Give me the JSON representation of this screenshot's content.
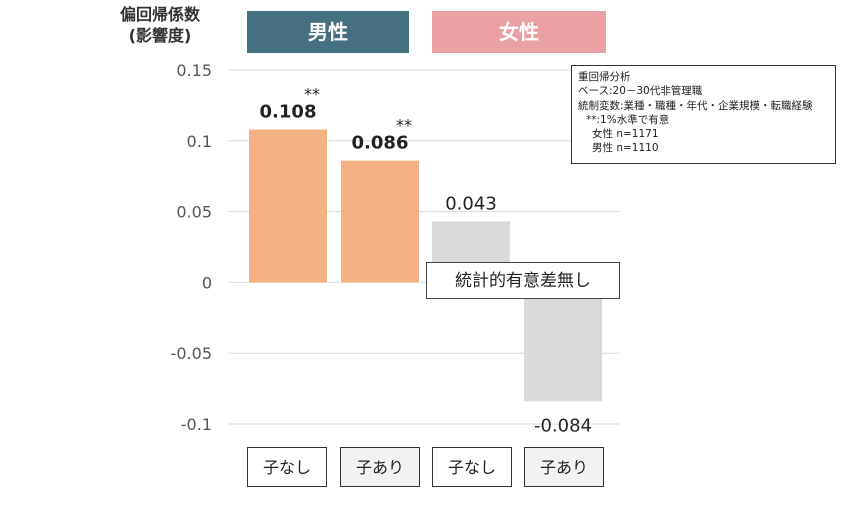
{
  "chart_data": {
    "type": "bar",
    "ylabel_line1": "偏回帰係数",
    "ylabel_line2": "(影響度)",
    "ylim": [
      -0.1,
      0.15
    ],
    "yticks": [
      "0.15",
      "0.1",
      "0.05",
      "0",
      "-0.05",
      "-0.1"
    ],
    "ytick_values": [
      0.15,
      0.1,
      0.05,
      0,
      -0.05,
      -0.1
    ],
    "grid": true,
    "groups": [
      {
        "name": "男性",
        "color": "#45707f"
      },
      {
        "name": "女性",
        "color": "#eaa0a4"
      }
    ],
    "categories": [
      "子なし",
      "子あり",
      "子なし",
      "子あり"
    ],
    "bars": [
      {
        "category": "子なし",
        "group": "男性",
        "value": 0.108,
        "label": "0.108",
        "significance": "**",
        "color": "#f4b183",
        "bold": true
      },
      {
        "category": "子あり",
        "group": "男性",
        "value": 0.086,
        "label": "0.086",
        "significance": "**",
        "color": "#f4b183",
        "bold": true
      },
      {
        "category": "子なし",
        "group": "女性",
        "value": 0.043,
        "label": "0.043",
        "significance": "",
        "color": "#d9d9d9",
        "bold": false
      },
      {
        "category": "子あり",
        "group": "女性",
        "value": -0.084,
        "label": "-0.084",
        "significance": "",
        "color": "#d9d9d9",
        "bold": false
      }
    ],
    "annotation": "統計的有意差無し",
    "notes": [
      "重回帰分析",
      "ベース:20－30代非管理職",
      "統制変数:業種・職種・年代・企業規模・転職経験",
      "**:1%水準で有意",
      "女性 n=1171",
      "男性 n=1110"
    ]
  }
}
